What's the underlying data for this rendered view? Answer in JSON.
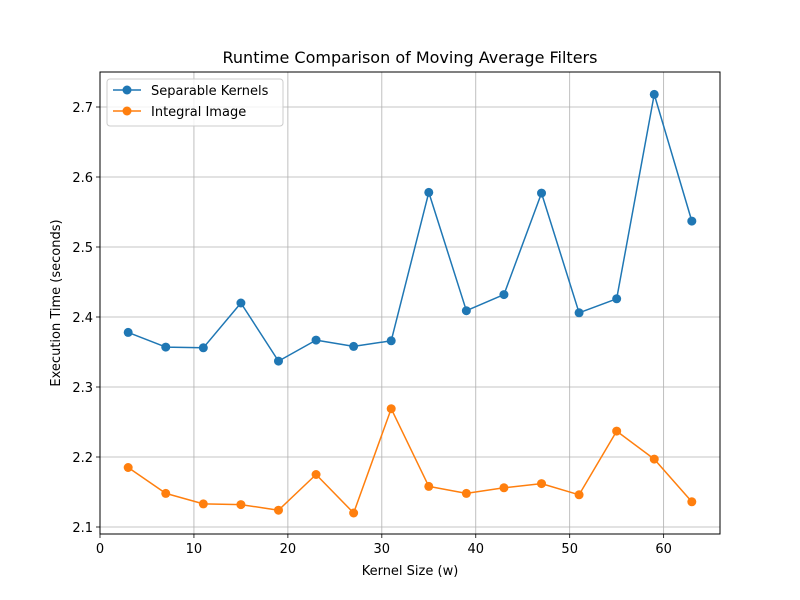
{
  "chart_data": {
    "type": "line",
    "title": "Runtime Comparison of Moving Average Filters",
    "xlabel": "Kernel Size (w)",
    "ylabel": "Execution Time (seconds)",
    "xlim": [
      0,
      66
    ],
    "ylim": [
      2.09,
      2.75
    ],
    "xticks": [
      0,
      10,
      20,
      30,
      40,
      50,
      60
    ],
    "yticks": [
      2.1,
      2.2,
      2.3,
      2.4,
      2.5,
      2.6,
      2.7
    ],
    "grid": true,
    "legend_position": "top-left",
    "x": [
      3,
      7,
      11,
      15,
      19,
      23,
      27,
      31,
      35,
      39,
      43,
      47,
      51,
      55,
      59,
      63
    ],
    "series": [
      {
        "name": "Separable Kernels",
        "color": "#1f77b4",
        "values": [
          2.378,
          2.357,
          2.356,
          2.42,
          2.337,
          2.367,
          2.358,
          2.366,
          2.578,
          2.409,
          2.432,
          2.577,
          2.406,
          2.426,
          2.718,
          2.537
        ]
      },
      {
        "name": "Integral Image",
        "color": "#ff7f0e",
        "values": [
          2.185,
          2.148,
          2.133,
          2.132,
          2.124,
          2.175,
          2.12,
          2.269,
          2.158,
          2.148,
          2.156,
          2.162,
          2.146,
          2.237,
          2.197,
          2.136
        ]
      }
    ]
  }
}
